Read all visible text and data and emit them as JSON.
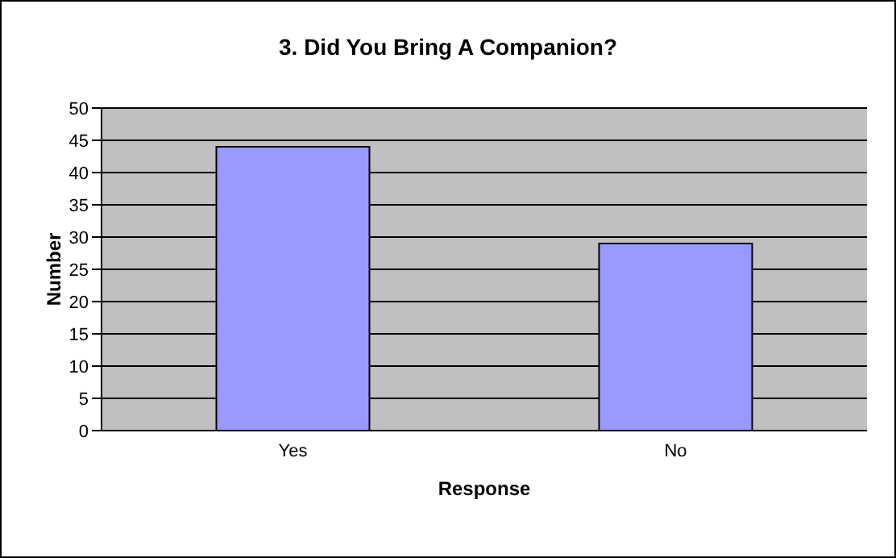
{
  "chart_data": {
    "type": "bar",
    "title": "3. Did You Bring A Companion?",
    "xlabel": "Response",
    "ylabel": "Number",
    "categories": [
      "Yes",
      "No"
    ],
    "values": [
      44,
      29
    ],
    "color": "#9999ff",
    "ylim": [
      0,
      50
    ],
    "yticks": [
      0,
      5,
      10,
      15,
      20,
      25,
      30,
      35,
      40,
      45,
      50
    ],
    "grid": "y",
    "legend": false
  }
}
